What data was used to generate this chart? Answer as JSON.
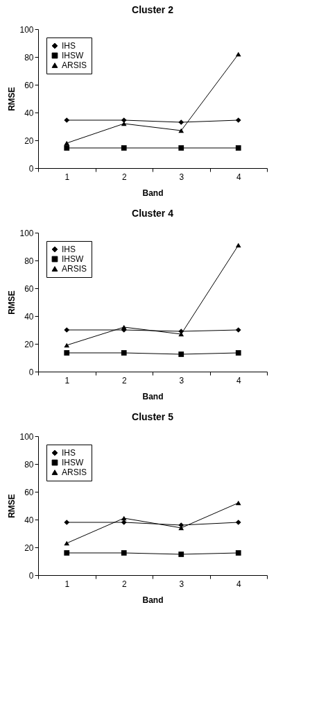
{
  "chart_data": [
    {
      "type": "line",
      "title": "Cluster 2",
      "xlabel": "Band",
      "ylabel": "RMSE",
      "categories": [
        "1",
        "2",
        "3",
        "4"
      ],
      "ylim": [
        0,
        100
      ],
      "yticks": [
        0,
        20,
        40,
        60,
        80,
        100
      ],
      "grid": false,
      "legend": "top left",
      "line_style": "solid",
      "series": [
        {
          "name": "IHS",
          "color": "#000000",
          "marker": "diamond",
          "values": [
            34.5,
            34.5,
            33,
            34.5
          ]
        },
        {
          "name": "IHSW",
          "color": "#000000",
          "marker": "square",
          "values": [
            14.5,
            14.5,
            14.5,
            14.5
          ]
        },
        {
          "name": "ARSIS",
          "color": "#000000",
          "marker": "triangle",
          "values": [
            18,
            32,
            27,
            82
          ]
        }
      ]
    },
    {
      "type": "line",
      "title": "Cluster 4",
      "xlabel": "Band",
      "ylabel": "RMSE",
      "categories": [
        "1",
        "2",
        "3",
        "4"
      ],
      "ylim": [
        0,
        100
      ],
      "yticks": [
        0,
        20,
        40,
        60,
        80,
        100
      ],
      "grid": false,
      "legend": "top left",
      "line_style": "solid",
      "series": [
        {
          "name": "IHS",
          "color": "#000000",
          "marker": "diamond",
          "values": [
            30,
            30,
            29,
            30
          ]
        },
        {
          "name": "IHSW",
          "color": "#000000",
          "marker": "square",
          "values": [
            13.5,
            13.5,
            12.5,
            13.5
          ]
        },
        {
          "name": "ARSIS",
          "color": "#000000",
          "marker": "triangle",
          "values": [
            19,
            32,
            27,
            91
          ]
        }
      ]
    },
    {
      "type": "line",
      "title": "Cluster 5",
      "xlabel": "Band",
      "ylabel": "RMSE",
      "categories": [
        "1",
        "2",
        "3",
        "4"
      ],
      "ylim": [
        0,
        100
      ],
      "yticks": [
        0,
        20,
        40,
        60,
        80,
        100
      ],
      "grid": false,
      "legend": "top left",
      "line_style": "solid",
      "series": [
        {
          "name": "IHS",
          "color": "#000000",
          "marker": "diamond",
          "values": [
            38,
            38,
            36,
            38
          ]
        },
        {
          "name": "IHSW",
          "color": "#000000",
          "marker": "square",
          "values": [
            16,
            16,
            15,
            16
          ]
        },
        {
          "name": "ARSIS",
          "color": "#000000",
          "marker": "triangle",
          "values": [
            23,
            41,
            34,
            52
          ]
        }
      ]
    }
  ]
}
